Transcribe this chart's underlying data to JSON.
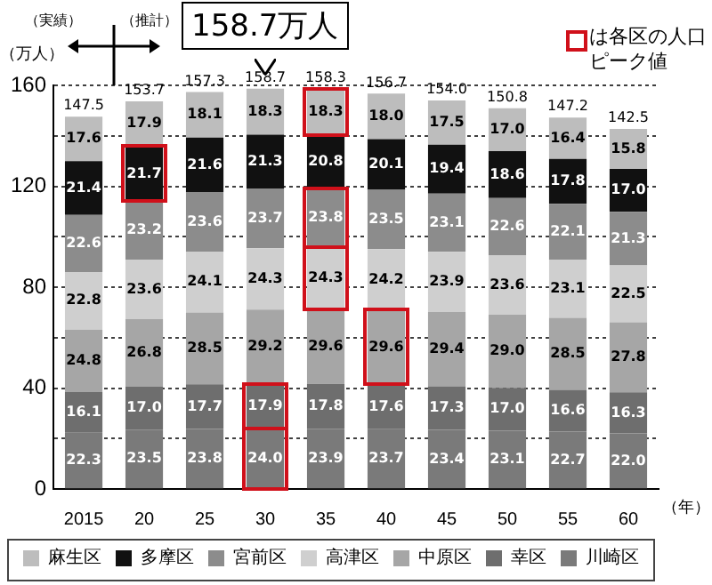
{
  "chart_data": {
    "type": "bar",
    "stacked": true,
    "ylabel": "（万人）",
    "xlabel": "（年）",
    "categories": [
      "2015",
      "20",
      "25",
      "30",
      "35",
      "40",
      "45",
      "50",
      "55",
      "60"
    ],
    "series": [
      {
        "name": "川崎区",
        "color": "#7a7a7a",
        "values": [
          22.3,
          23.5,
          23.8,
          24.0,
          23.9,
          23.7,
          23.4,
          23.1,
          22.7,
          22.0
        ],
        "value_labels": [
          "22.3",
          "23.5",
          "23.8",
          "24.0",
          "23.9",
          "23.7",
          "23.4",
          "23.1",
          "22.7",
          "22.0"
        ]
      },
      {
        "name": "幸区",
        "color": "#6e6e6e",
        "values": [
          16.1,
          17.0,
          17.7,
          17.9,
          17.8,
          17.6,
          17.3,
          17.0,
          16.6,
          16.3
        ],
        "value_labels": [
          "16.1",
          "17.0",
          "17.7",
          "17.9",
          "17.8",
          "17.6",
          "17.3",
          "17.0",
          "16.6",
          "16.3"
        ]
      },
      {
        "name": "中原区",
        "color": "#a6a6a6",
        "values": [
          24.8,
          26.8,
          28.5,
          29.2,
          29.6,
          29.6,
          29.4,
          29.0,
          28.5,
          27.8
        ],
        "value_labels": [
          "24.8",
          "26.8",
          "28.5",
          "29.2",
          "29.6",
          "29.6",
          "29.4",
          "29.0",
          "28.5",
          "27.8"
        ]
      },
      {
        "name": "高津区",
        "color": "#cfcfcf",
        "values": [
          22.8,
          23.6,
          24.1,
          24.3,
          24.3,
          24.2,
          23.9,
          23.6,
          23.1,
          22.5
        ],
        "value_labels": [
          "22.8",
          "23.6",
          "24.1",
          "24.3",
          "24.3",
          "24.2",
          "23.9",
          "23.6",
          "23.1",
          "22.5"
        ]
      },
      {
        "name": "宮前区",
        "color": "#8c8c8c",
        "values": [
          22.6,
          23.2,
          23.6,
          23.7,
          23.8,
          23.5,
          23.1,
          22.6,
          22.1,
          21.3
        ],
        "value_labels": [
          "22.6",
          "23.2",
          "23.6",
          "23.7",
          "23.8",
          "23.5",
          "23.1",
          "22.6",
          "22.1",
          "21.3"
        ]
      },
      {
        "name": "多摩区",
        "color": "#111111",
        "values": [
          21.4,
          21.7,
          21.6,
          21.3,
          20.8,
          20.1,
          19.4,
          18.6,
          17.8,
          17.0
        ],
        "value_labels": [
          "21.4",
          "21.7",
          "21.6",
          "21.3",
          "20.8",
          "20.1",
          "19.4",
          "18.6",
          "17.8",
          "17.0"
        ]
      },
      {
        "name": "麻生区",
        "color": "#bdbdbd",
        "values": [
          17.6,
          17.9,
          18.1,
          18.3,
          18.3,
          18.0,
          17.5,
          17.0,
          16.4,
          15.8
        ],
        "value_labels": [
          "17.6",
          "17.9",
          "18.1",
          "18.3",
          "18.3",
          "18.0",
          "17.5",
          "17.0",
          "16.4",
          "15.8"
        ]
      }
    ],
    "totals": [
      "147.5",
      "153.7",
      "157.3",
      "158.7",
      "158.3",
      "156.7",
      "154.0",
      "150.8",
      "147.2",
      "142.5"
    ],
    "ylim": [
      0,
      160
    ],
    "yticks": [
      0,
      {
        "value": 20,
        "label": null
      },
      40,
      {
        "value": 60,
        "label": null
      },
      80,
      {
        "value": 100,
        "label": null
      },
      120,
      {
        "value": 140,
        "label": null
      },
      160
    ],
    "grid": "y",
    "legend": "bottom",
    "annotations": [
      {
        "text": "158.7万人",
        "x": "30",
        "y": 158.7
      },
      "（実績）",
      "（推計）",
      "は各区の人口ピーク値"
    ]
  }
}
